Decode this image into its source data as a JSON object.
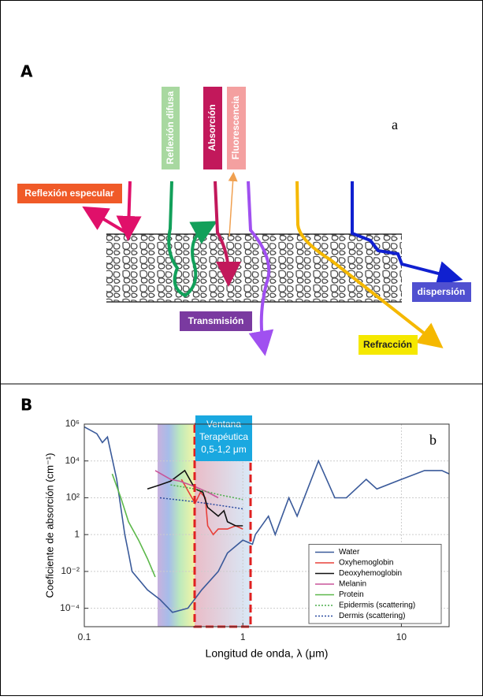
{
  "panels": [
    {
      "label": "A"
    },
    {
      "label": "B"
    }
  ],
  "diagram": {
    "annotation": "a",
    "labels": [
      "Reflexión especular",
      "Reflexión difusa",
      "Absorción",
      "Fluorescencia",
      "Transmisión",
      "dispersión",
      "Refracción"
    ]
  },
  "chart_data": {
    "type": "line",
    "xlabel": "Longitud de onda, λ (μm)",
    "ylabel": "Coeficiente de absorción (cm⁻¹)",
    "annotation": "b",
    "window_label": [
      "Ventana",
      "Terapéutica",
      "0,5-1,2 μm"
    ],
    "log_x": true,
    "log_y": true,
    "grid": true,
    "legend": "lower right",
    "xlim": [
      0.1,
      20
    ],
    "ylim": [
      1e-05,
      1000000
    ],
    "xticks": [
      0.1,
      1,
      10
    ],
    "yticks": [
      {
        "value": 0.0001,
        "label": "10⁻⁴"
      },
      {
        "value": 0.01,
        "label": "10⁻²"
      },
      1,
      {
        "value": 100,
        "label": "10²"
      },
      {
        "value": 10000,
        "label": "10⁴"
      },
      {
        "value": 1000000,
        "label": "10⁶"
      }
    ],
    "series": [
      {
        "name": "Water",
        "color": "#3a5a9a",
        "style": "solid",
        "x": [
          0.1,
          0.12,
          0.13,
          0.14,
          0.16,
          0.18,
          0.19,
          0.2,
          0.25,
          0.3,
          0.36,
          0.45,
          0.55,
          0.7,
          0.8,
          1.0,
          1.15,
          1.2,
          1.45,
          1.6,
          1.95,
          2.2,
          3.0,
          3.8,
          4.5,
          6.0,
          7.0,
          10,
          14,
          18,
          20
        ],
        "values": [
          700000,
          300000,
          100000,
          200000,
          1000,
          1,
          0.1,
          0.01,
          0.001,
          0.0003,
          6e-05,
          0.0001,
          0.001,
          0.01,
          0.1,
          0.5,
          0.3,
          1,
          10,
          1,
          100,
          10,
          10000,
          100,
          100,
          1000,
          300,
          1000,
          3000,
          3000,
          2000
        ]
      },
      {
        "name": "Oxyhemoglobin",
        "color": "#e8403a",
        "style": "solid",
        "x": [
          0.41,
          0.5,
          0.54,
          0.58,
          0.6,
          0.65,
          0.7,
          0.8,
          0.9,
          1.0
        ],
        "values": [
          1000,
          50,
          200,
          100,
          3,
          1,
          2,
          2,
          3,
          2
        ]
      },
      {
        "name": "Deoxyhemoglobin",
        "color": "#111111",
        "style": "solid",
        "x": [
          0.25,
          0.3,
          0.35,
          0.43,
          0.5,
          0.56,
          0.6,
          0.7,
          0.76,
          0.8,
          0.9,
          1.0
        ],
        "values": [
          300,
          500,
          800,
          3000,
          300,
          200,
          30,
          10,
          20,
          5,
          3,
          3
        ]
      },
      {
        "name": "Melanin",
        "color": "#c8559a",
        "style": "solid",
        "x": [
          0.28,
          0.35,
          0.4,
          0.5,
          0.6,
          0.7
        ],
        "values": [
          3000,
          1000,
          800,
          400,
          200,
          100
        ]
      },
      {
        "name": "Protein",
        "color": "#5cb84a",
        "style": "solid",
        "x": [
          0.15,
          0.17,
          0.19,
          0.22,
          0.25,
          0.28
        ],
        "values": [
          2000,
          100,
          5,
          0.5,
          0.05,
          0.005
        ]
      },
      {
        "name": "Epidermis (scattering)",
        "color": "#4cae4c",
        "style": "dotted",
        "x": [
          0.35,
          0.5,
          0.7,
          1.0
        ],
        "values": [
          500,
          300,
          150,
          80
        ]
      },
      {
        "name": "Dermis (scattering)",
        "color": "#2a4aa0",
        "style": "dotted",
        "x": [
          0.3,
          0.5,
          0.7,
          1.0
        ],
        "values": [
          100,
          60,
          40,
          25
        ]
      }
    ]
  }
}
